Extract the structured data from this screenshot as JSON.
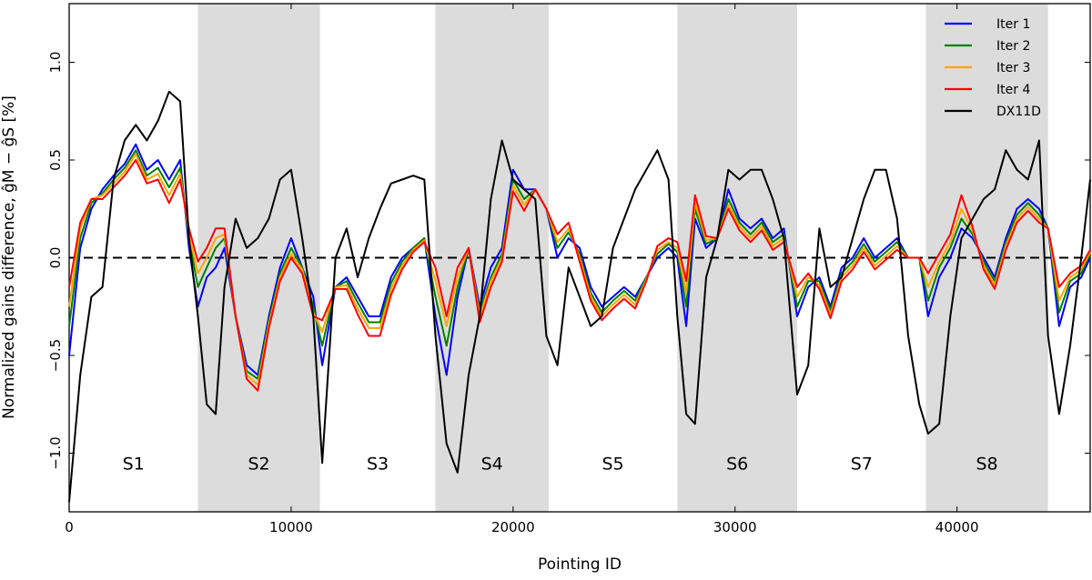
{
  "chart_data": {
    "type": "line",
    "title": "",
    "xlabel": "Pointing ID",
    "ylabel": "Normalized gains difference, ĝM − ĝS [%]",
    "xlim": [
      0,
      46000
    ],
    "ylim": [
      -1.3,
      1.3
    ],
    "xticks": [
      0,
      10000,
      20000,
      30000,
      40000
    ],
    "xtick_labels": [
      "0",
      "10000",
      "20000",
      "30000",
      "40000"
    ],
    "yticks": [
      -1.0,
      -0.5,
      0.0,
      0.5,
      1.0
    ],
    "ytick_labels": [
      "−1.0",
      "−0.5",
      "0.0",
      "0.5",
      "1.0"
    ],
    "reference_line": {
      "y": 0.0,
      "style": "dashed",
      "color": "#000000"
    },
    "legend_position": "top-right",
    "surveys": [
      {
        "label": "S1",
        "x_start": 0,
        "x_end": 5800,
        "shaded": false
      },
      {
        "label": "S2",
        "x_start": 5800,
        "x_end": 11300,
        "shaded": true
      },
      {
        "label": "S3",
        "x_start": 11300,
        "x_end": 16500,
        "shaded": false
      },
      {
        "label": "S4",
        "x_start": 16500,
        "x_end": 21600,
        "shaded": true
      },
      {
        "label": "S5",
        "x_start": 21600,
        "x_end": 27400,
        "shaded": false
      },
      {
        "label": "S6",
        "x_start": 27400,
        "x_end": 32800,
        "shaded": true
      },
      {
        "label": "S7",
        "x_start": 32800,
        "x_end": 38600,
        "shaded": false
      },
      {
        "label": "S8",
        "x_start": 38600,
        "x_end": 44100,
        "shaded": true
      }
    ],
    "survey_label_y": -1.05,
    "x": [
      0,
      500,
      1000,
      1500,
      2000,
      2500,
      3000,
      3500,
      4000,
      4500,
      5000,
      5400,
      5800,
      6200,
      6600,
      7000,
      7500,
      8000,
      8500,
      9000,
      9500,
      10000,
      10500,
      11000,
      11400,
      12000,
      12500,
      13000,
      13500,
      14000,
      14500,
      15000,
      15500,
      16000,
      16500,
      17000,
      17500,
      18000,
      18500,
      19000,
      19500,
      20000,
      20500,
      21000,
      21500,
      22000,
      22500,
      23000,
      23500,
      24000,
      24500,
      25000,
      25500,
      26000,
      26500,
      27000,
      27400,
      27800,
      28200,
      28700,
      29200,
      29700,
      30200,
      30700,
      31200,
      31700,
      32200,
      32800,
      33300,
      33800,
      34300,
      34800,
      35300,
      35800,
      36300,
      36800,
      37300,
      37800,
      38300,
      38700,
      39200,
      39700,
      40200,
      40700,
      41200,
      41700,
      42200,
      42700,
      43200,
      43700,
      44100,
      44600,
      45100,
      45600,
      46000
    ],
    "series": [
      {
        "name": "Iter 1",
        "color": "#0000ff",
        "values": [
          -0.5,
          0.05,
          0.25,
          0.35,
          0.42,
          0.48,
          0.58,
          0.45,
          0.5,
          0.4,
          0.5,
          0.05,
          -0.25,
          -0.1,
          -0.05,
          0.05,
          -0.3,
          -0.55,
          -0.6,
          -0.3,
          -0.05,
          0.1,
          -0.05,
          -0.2,
          -0.55,
          -0.15,
          -0.1,
          -0.2,
          -0.3,
          -0.3,
          -0.1,
          0.0,
          0.05,
          0.1,
          -0.3,
          -0.6,
          -0.2,
          0.05,
          -0.25,
          -0.05,
          0.05,
          0.45,
          0.35,
          0.35,
          0.25,
          0.0,
          0.1,
          0.05,
          -0.15,
          -0.25,
          -0.2,
          -0.15,
          -0.2,
          -0.1,
          0.0,
          0.05,
          0.0,
          -0.35,
          0.2,
          0.05,
          0.1,
          0.35,
          0.2,
          0.15,
          0.2,
          0.1,
          0.15,
          -0.3,
          -0.15,
          -0.1,
          -0.25,
          -0.05,
          0.0,
          0.1,
          0.0,
          0.05,
          0.1,
          0.0,
          0.0,
          -0.3,
          -0.1,
          0.0,
          0.15,
          0.1,
          0.0,
          -0.1,
          0.1,
          0.25,
          0.3,
          0.25,
          0.15,
          -0.35,
          -0.15,
          -0.1,
          0.0
        ]
      },
      {
        "name": "Iter 2",
        "color": "#008000",
        "values": [
          -0.35,
          0.1,
          0.28,
          0.33,
          0.4,
          0.46,
          0.55,
          0.42,
          0.46,
          0.36,
          0.46,
          0.1,
          -0.15,
          -0.05,
          0.05,
          0.1,
          -0.3,
          -0.58,
          -0.62,
          -0.32,
          -0.08,
          0.05,
          -0.05,
          -0.25,
          -0.45,
          -0.15,
          -0.12,
          -0.23,
          -0.33,
          -0.33,
          -0.13,
          -0.02,
          0.05,
          0.1,
          -0.2,
          -0.45,
          -0.15,
          0.05,
          -0.28,
          -0.1,
          0.02,
          0.4,
          0.3,
          0.35,
          0.25,
          0.05,
          0.13,
          0.02,
          -0.18,
          -0.28,
          -0.22,
          -0.17,
          -0.22,
          -0.1,
          0.02,
          0.07,
          0.03,
          -0.25,
          0.25,
          0.07,
          0.1,
          0.3,
          0.18,
          0.12,
          0.18,
          0.08,
          0.12,
          -0.25,
          -0.12,
          -0.12,
          -0.27,
          -0.08,
          -0.02,
          0.07,
          -0.02,
          0.03,
          0.08,
          0.0,
          0.0,
          -0.22,
          -0.05,
          0.05,
          0.2,
          0.12,
          -0.02,
          -0.12,
          0.08,
          0.22,
          0.28,
          0.22,
          0.15,
          -0.28,
          -0.12,
          -0.08,
          0.02
        ]
      },
      {
        "name": "Iter 3",
        "color": "#ffa500",
        "values": [
          -0.25,
          0.15,
          0.3,
          0.32,
          0.38,
          0.44,
          0.53,
          0.4,
          0.43,
          0.32,
          0.43,
          0.12,
          -0.08,
          0.0,
          0.1,
          0.12,
          -0.3,
          -0.6,
          -0.65,
          -0.34,
          -0.1,
          0.02,
          -0.06,
          -0.28,
          -0.38,
          -0.15,
          -0.14,
          -0.26,
          -0.36,
          -0.36,
          -0.16,
          -0.04,
          0.04,
          0.09,
          -0.12,
          -0.35,
          -0.1,
          0.05,
          -0.3,
          -0.12,
          0.0,
          0.37,
          0.27,
          0.35,
          0.25,
          0.08,
          0.15,
          0.0,
          -0.2,
          -0.3,
          -0.24,
          -0.19,
          -0.24,
          -0.11,
          0.04,
          0.08,
          0.05,
          -0.18,
          0.28,
          0.09,
          0.1,
          0.27,
          0.16,
          0.1,
          0.16,
          0.06,
          0.1,
          -0.2,
          -0.1,
          -0.14,
          -0.29,
          -0.1,
          -0.04,
          0.05,
          -0.04,
          0.01,
          0.06,
          0.0,
          0.0,
          -0.15,
          -0.02,
          0.08,
          0.25,
          0.14,
          -0.04,
          -0.14,
          0.06,
          0.2,
          0.26,
          0.2,
          0.15,
          -0.22,
          -0.1,
          -0.06,
          0.03
        ]
      },
      {
        "name": "Iter 4",
        "color": "#ff0000",
        "values": [
          -0.15,
          0.18,
          0.3,
          0.3,
          0.36,
          0.42,
          0.5,
          0.38,
          0.4,
          0.28,
          0.4,
          0.15,
          -0.02,
          0.05,
          0.15,
          0.15,
          -0.3,
          -0.62,
          -0.68,
          -0.36,
          -0.12,
          0.0,
          -0.08,
          -0.3,
          -0.32,
          -0.16,
          -0.16,
          -0.29,
          -0.4,
          -0.4,
          -0.19,
          -0.06,
          0.03,
          0.08,
          -0.05,
          -0.3,
          -0.05,
          0.05,
          -0.33,
          -0.15,
          -0.02,
          0.34,
          0.24,
          0.35,
          0.25,
          0.12,
          0.18,
          -0.02,
          -0.22,
          -0.32,
          -0.26,
          -0.21,
          -0.26,
          -0.12,
          0.06,
          0.1,
          0.08,
          -0.12,
          0.32,
          0.11,
          0.1,
          0.25,
          0.14,
          0.08,
          0.14,
          0.04,
          0.08,
          -0.15,
          -0.08,
          -0.16,
          -0.31,
          -0.12,
          -0.06,
          0.03,
          -0.06,
          -0.01,
          0.04,
          0.0,
          0.0,
          -0.08,
          0.02,
          0.12,
          0.32,
          0.16,
          -0.06,
          -0.16,
          0.04,
          0.18,
          0.24,
          0.18,
          0.15,
          -0.15,
          -0.08,
          -0.04,
          0.04
        ]
      },
      {
        "name": "DX11D",
        "color": "#000000",
        "values": [
          -1.25,
          -0.6,
          -0.2,
          -0.15,
          0.4,
          0.6,
          0.68,
          0.6,
          0.7,
          0.85,
          0.8,
          0.1,
          -0.3,
          -0.75,
          -0.8,
          -0.15,
          0.2,
          0.05,
          0.1,
          0.2,
          0.4,
          0.45,
          0.1,
          -0.3,
          -1.05,
          0.0,
          0.15,
          -0.1,
          0.1,
          0.25,
          0.38,
          0.4,
          0.42,
          0.4,
          -0.4,
          -0.95,
          -1.1,
          -0.6,
          -0.3,
          0.3,
          0.6,
          0.4,
          0.35,
          0.3,
          -0.4,
          -0.55,
          -0.05,
          -0.2,
          -0.35,
          -0.3,
          0.05,
          0.2,
          0.35,
          0.45,
          0.55,
          0.4,
          -0.3,
          -0.8,
          -0.85,
          -0.1,
          0.1,
          0.45,
          0.4,
          0.45,
          0.45,
          0.3,
          0.1,
          -0.7,
          -0.55,
          0.15,
          -0.15,
          -0.1,
          0.1,
          0.3,
          0.45,
          0.45,
          0.2,
          -0.4,
          -0.75,
          -0.9,
          -0.85,
          -0.3,
          0.1,
          0.2,
          0.3,
          0.35,
          0.55,
          0.45,
          0.4,
          0.6,
          -0.4,
          -0.8,
          -0.45,
          0.0,
          0.4
        ]
      }
    ]
  }
}
